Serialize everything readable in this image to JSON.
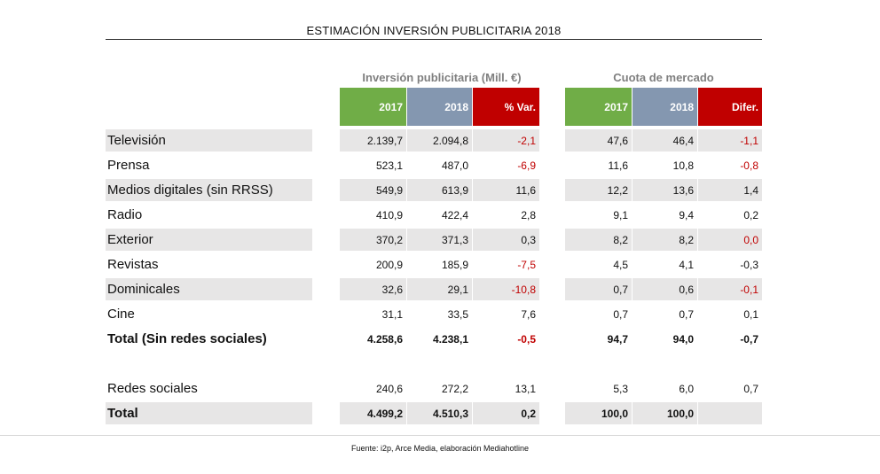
{
  "title": "ESTIMACIÓN INVERSIÓN PUBLICITARIA  2018",
  "groups": {
    "inversion": "Inversión publicitaria (Mill. €)",
    "cuota": "Cuota de mercado"
  },
  "headers": {
    "inv_2017": "2017",
    "inv_2018": "2018",
    "inv_var": "% Var.",
    "cuota_2017": "2017",
    "cuota_2018": "2018",
    "cuota_dif": "Difer."
  },
  "rows": [
    {
      "label": "Televisión",
      "inv_2017": "2.139,7",
      "inv_2018": "2.094,8",
      "var": "-2,1",
      "c2017": "47,6",
      "c2018": "46,4",
      "dif": "-1,1"
    },
    {
      "label": "Prensa",
      "inv_2017": "523,1",
      "inv_2018": "487,0",
      "var": "-6,9",
      "c2017": "11,6",
      "c2018": "10,8",
      "dif": "-0,8"
    },
    {
      "label": "Medios digitales (sin RRSS)",
      "inv_2017": "549,9",
      "inv_2018": "613,9",
      "var": "11,6",
      "c2017": "12,2",
      "c2018": "13,6",
      "dif": "1,4"
    },
    {
      "label": "Radio",
      "inv_2017": "410,9",
      "inv_2018": "422,4",
      "var": "2,8",
      "c2017": "9,1",
      "c2018": "9,4",
      "dif": "0,2"
    },
    {
      "label": "Exterior",
      "inv_2017": "370,2",
      "inv_2018": "371,3",
      "var": "0,3",
      "c2017": "8,2",
      "c2018": "8,2",
      "dif": "0,0"
    },
    {
      "label": "Revistas",
      "inv_2017": "200,9",
      "inv_2018": "185,9",
      "var": "-7,5",
      "c2017": "4,5",
      "c2018": "4,1",
      "dif": "-0,3"
    },
    {
      "label": "Dominicales",
      "inv_2017": "32,6",
      "inv_2018": "29,1",
      "var": "-10,8",
      "c2017": "0,7",
      "c2018": "0,6",
      "dif": "-0,1"
    },
    {
      "label": "Cine",
      "inv_2017": "31,1",
      "inv_2018": "33,5",
      "var": "7,6",
      "c2017": "0,7",
      "c2018": "0,7",
      "dif": "0,1"
    },
    {
      "label": "Total (Sin redes sociales)",
      "inv_2017": "4.258,6",
      "inv_2018": "4.238,1",
      "var": "-0,5",
      "c2017": "94,7",
      "c2018": "94,0",
      "dif": "-0,7"
    },
    {
      "label": "Redes sociales",
      "inv_2017": "240,6",
      "inv_2018": "272,2",
      "var": "13,1",
      "c2017": "5,3",
      "c2018": "6,0",
      "dif": "0,7"
    },
    {
      "label": "Total",
      "inv_2017": "4.499,2",
      "inv_2018": "4.510,3",
      "var": "0,2",
      "c2017": "100,0",
      "c2018": "100,0",
      "dif": ""
    }
  ],
  "source": "Fuente: i2p, Arce Media, elaboración Mediahotline",
  "colors": {
    "green": "#70ad47",
    "blue": "#8497b0",
    "red": "#c00000",
    "shade": "#e7e6e6"
  }
}
